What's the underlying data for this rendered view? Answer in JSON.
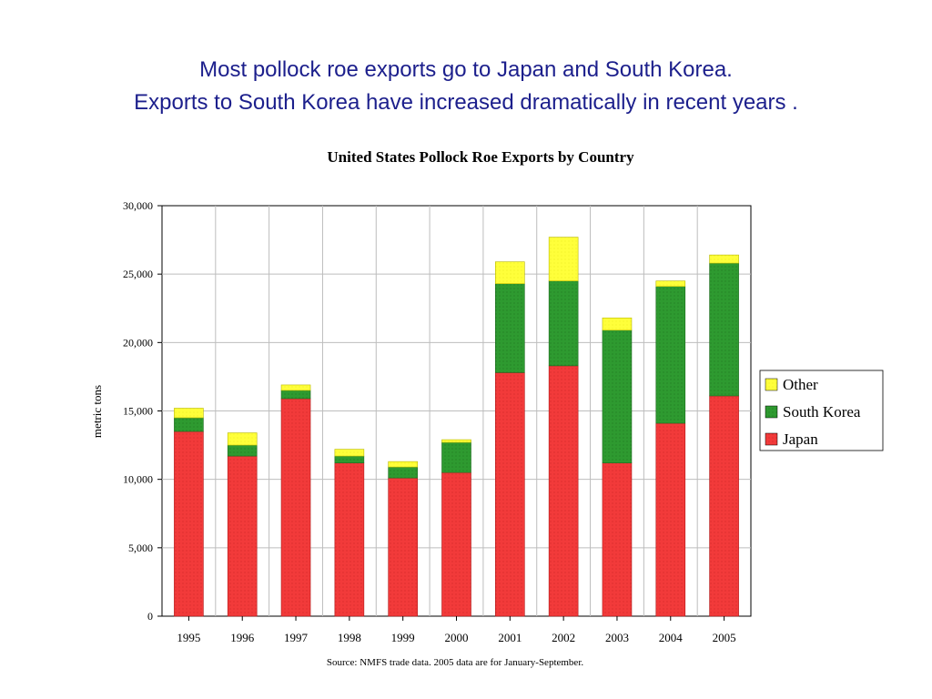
{
  "slide": {
    "headline_line1": "Most pollock roe exports go to Japan and South Korea.",
    "headline_line2": "Exports to South Korea have increased dramatically in recent years ."
  },
  "colors": {
    "japan": "#f23a3a",
    "south_korea": "#2e9a30",
    "other": "#ffff3a",
    "headline": "#1c1f8c"
  },
  "chart_data": {
    "type": "bar",
    "stacked": true,
    "title": "United States Pollock Roe Exports by Country",
    "xlabel": "",
    "ylabel": "metric tons",
    "ylim": [
      0,
      30000
    ],
    "yticks": [
      0,
      5000,
      10000,
      15000,
      20000,
      25000,
      30000
    ],
    "ytick_labels": [
      "0",
      "5,000",
      "10,000",
      "15,000",
      "20,000",
      "25,000",
      "30,000"
    ],
    "grid": true,
    "legend_position": "right",
    "categories": [
      "1995",
      "1996",
      "1997",
      "1998",
      "1999",
      "2000",
      "2001",
      "2002",
      "2003",
      "2004",
      "2005"
    ],
    "series": [
      {
        "name": "Japan",
        "values": [
          13500,
          11700,
          15900,
          11200,
          10100,
          10500,
          17800,
          18300,
          11200,
          14100,
          16100
        ]
      },
      {
        "name": "South Korea",
        "values": [
          1000,
          800,
          600,
          500,
          800,
          2200,
          6500,
          6200,
          9700,
          10000,
          9700
        ]
      },
      {
        "name": "Other",
        "values": [
          700,
          900,
          400,
          500,
          400,
          200,
          1600,
          3200,
          900,
          400,
          600
        ]
      }
    ],
    "legend": [
      "Other",
      "South Korea",
      "Japan"
    ],
    "source_note": "Source:  NMFS trade data.  2005 data are for January-September."
  }
}
